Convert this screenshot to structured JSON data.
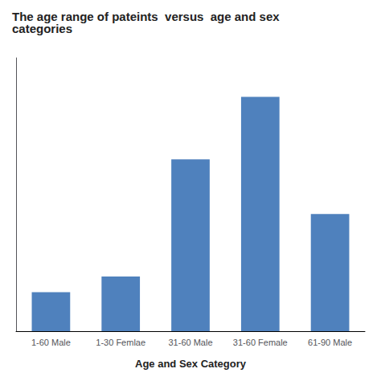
{
  "chart_data": {
    "type": "bar",
    "title": "The age range of pateints  versus  age and sex\ncategories",
    "xlabel": "Age and Sex Category",
    "categories": [
      "1-60 Male",
      "1-30 Femlae",
      "31-60 Male",
      "31-60 Female",
      "61-90 Male"
    ],
    "values": [
      5,
      7,
      22,
      30,
      15
    ],
    "color": "#4F81BD",
    "ylim": [
      0,
      35
    ],
    "yticks": [],
    "grid": false,
    "tick_labels": "x"
  }
}
